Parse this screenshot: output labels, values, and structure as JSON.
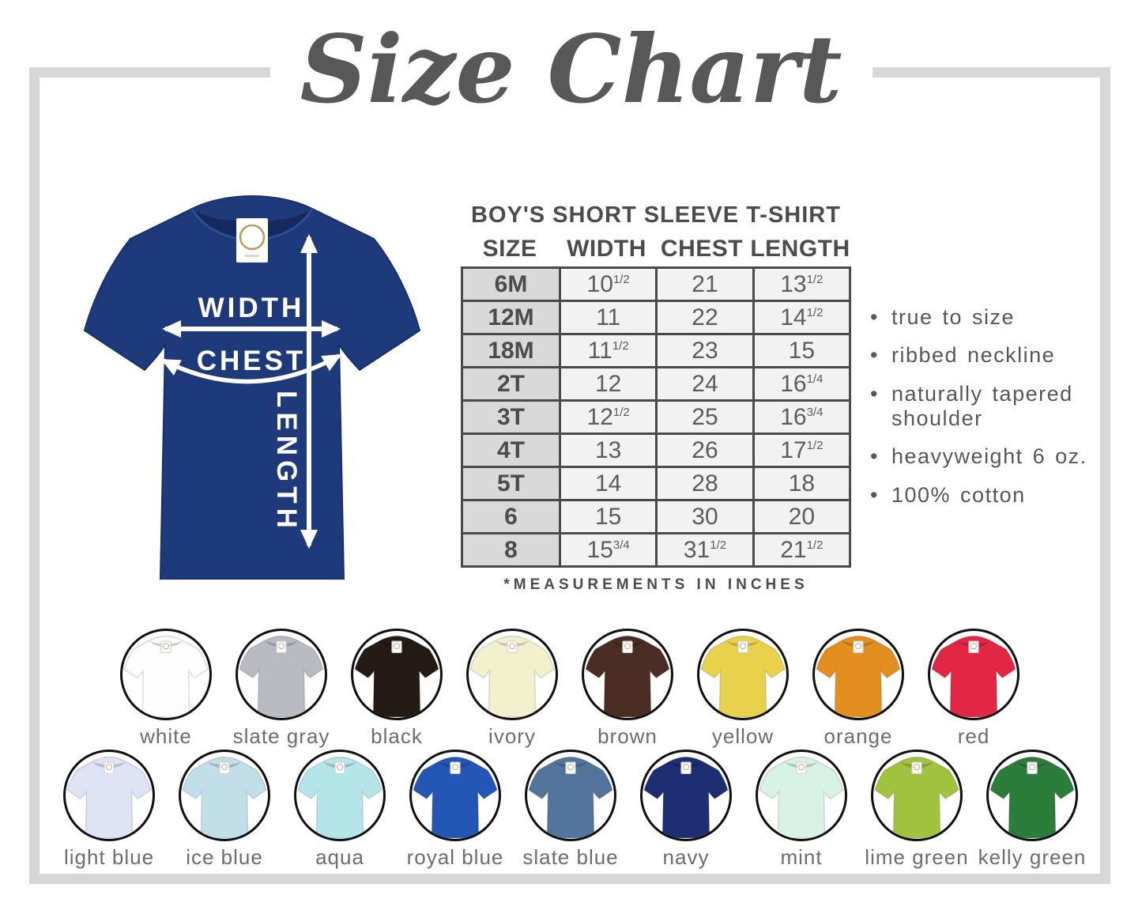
{
  "page": {
    "title": "Size Chart"
  },
  "diagram": {
    "width_label": "WIDTH",
    "chest_label": "CHEST",
    "length_label": "LENGTH",
    "shirt_color": "#1e3a7a",
    "tag_text": "BB"
  },
  "size_table": {
    "heading": "BOY'S SHORT SLEEVE T-SHIRT",
    "columns": [
      "SIZE",
      "WIDTH",
      "CHEST",
      "LENGTH"
    ],
    "rows": [
      {
        "size": "6M",
        "width": "10 1/2",
        "chest": "21",
        "length": "13 1/2"
      },
      {
        "size": "12M",
        "width": "11",
        "chest": "22",
        "length": "14 1/2"
      },
      {
        "size": "18M",
        "width": "11 1/2",
        "chest": "23",
        "length": "15"
      },
      {
        "size": "2T",
        "width": "12",
        "chest": "24",
        "length": "16 1/4"
      },
      {
        "size": "3T",
        "width": "12 1/2",
        "chest": "25",
        "length": "16 3/4"
      },
      {
        "size": "4T",
        "width": "13",
        "chest": "26",
        "length": "17 1/2"
      },
      {
        "size": "5T",
        "width": "14",
        "chest": "28",
        "length": "18"
      },
      {
        "size": "6",
        "width": "15",
        "chest": "30",
        "length": "20"
      },
      {
        "size": "8",
        "width": "15 3/4",
        "chest": "31 1/2",
        "length": "21 1/2"
      }
    ],
    "note": "*MEASUREMENTS IN INCHES"
  },
  "features": [
    "true to size",
    "ribbed neckline",
    "naturally tapered shoulder",
    "heavyweight 6 oz.",
    "100% cotton"
  ],
  "swatches": {
    "row1": [
      {
        "name": "white",
        "hex": "#fdfdfd"
      },
      {
        "name": "slate gray",
        "hex": "#b9bac2"
      },
      {
        "name": "black",
        "hex": "#241b17"
      },
      {
        "name": "ivory",
        "hex": "#f3f0cd"
      },
      {
        "name": "brown",
        "hex": "#4a2d24"
      },
      {
        "name": "yellow",
        "hex": "#e8d24c"
      },
      {
        "name": "orange",
        "hex": "#e28f20"
      },
      {
        "name": "red",
        "hex": "#e12744"
      }
    ],
    "row2": [
      {
        "name": "light blue",
        "hex": "#dfe3f6"
      },
      {
        "name": "ice blue",
        "hex": "#c2dfe9"
      },
      {
        "name": "aqua",
        "hex": "#b4e5e8"
      },
      {
        "name": "royal blue",
        "hex": "#2457b5"
      },
      {
        "name": "slate blue",
        "hex": "#53759c"
      },
      {
        "name": "navy",
        "hex": "#1d2f72"
      },
      {
        "name": "mint",
        "hex": "#d8f2e5"
      },
      {
        "name": "lime green",
        "hex": "#a2c340"
      },
      {
        "name": "kelly green",
        "hex": "#2c7d3c"
      }
    ]
  }
}
